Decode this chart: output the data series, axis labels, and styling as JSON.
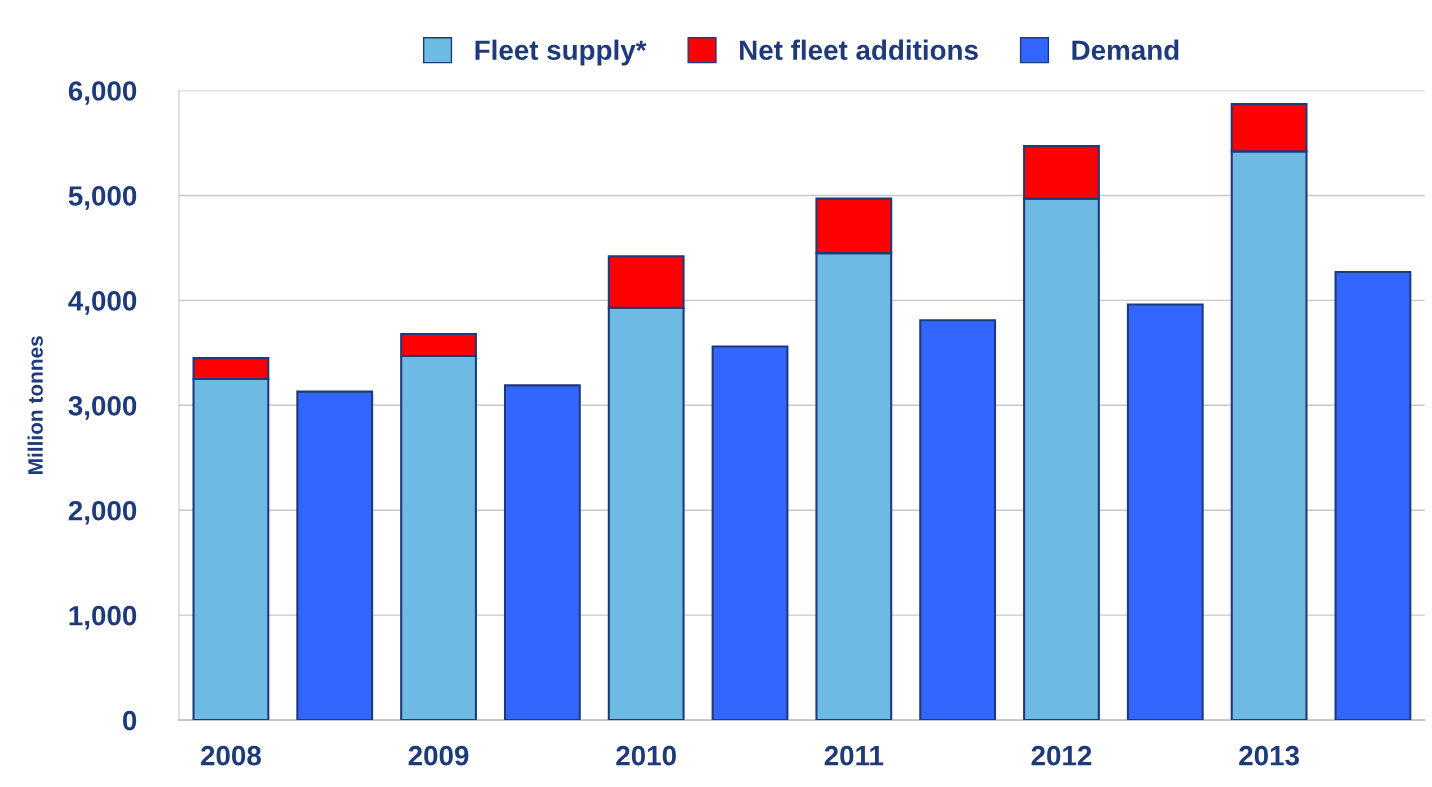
{
  "chart_data": {
    "type": "bar",
    "stacked": true,
    "ylabel": "Million tonnes",
    "categories": [
      "2008",
      null,
      "2009",
      null,
      "2010",
      null,
      "2011",
      null,
      "2012",
      null,
      "2013",
      null
    ],
    "series": [
      {
        "name": "Fleet supply*",
        "color": "#6dbbe2",
        "values": [
          3250,
          null,
          3470,
          null,
          3930,
          null,
          4450,
          null,
          4970,
          null,
          5420,
          null
        ]
      },
      {
        "name": "Net fleet additions",
        "color": "#ff0000",
        "values": [
          200,
          null,
          210,
          null,
          490,
          null,
          520,
          null,
          500,
          null,
          450,
          null
        ]
      },
      {
        "name": "Demand",
        "color": "#3366ff",
        "values": [
          null,
          3130,
          null,
          3190,
          null,
          3560,
          null,
          3810,
          null,
          3960,
          null,
          4270
        ]
      }
    ],
    "ylim": [
      0,
      6000
    ],
    "yticks": [
      0,
      {
        "value": 1000,
        "label": "1,000"
      },
      {
        "value": 2000,
        "label": "2,000"
      },
      {
        "value": 3000,
        "label": "3,000"
      },
      {
        "value": 4000,
        "label": "4,000"
      },
      {
        "value": 5000,
        "label": "5,000"
      },
      {
        "value": 6000,
        "label": "6,000"
      }
    ],
    "grid": "y",
    "legend": "top"
  }
}
